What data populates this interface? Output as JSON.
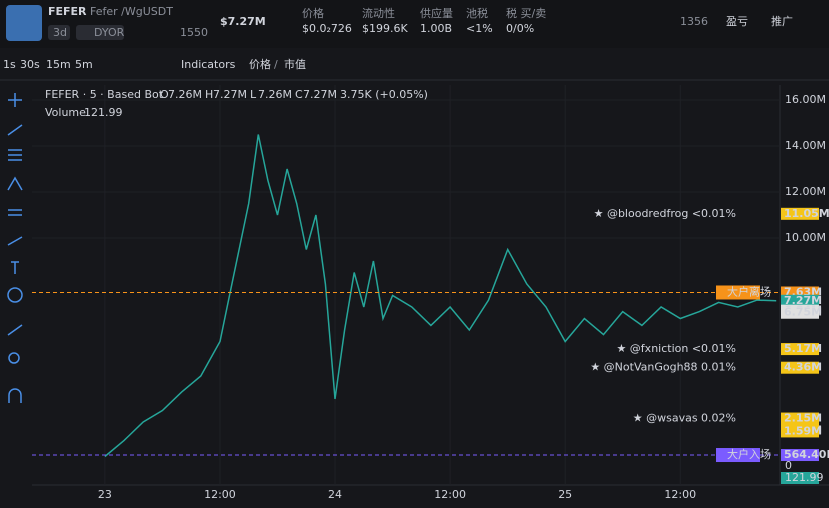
{
  "header": {
    "symbol": "FEFER",
    "pair": "Fefer /WgUSDT",
    "age": "3d",
    "dyor": "DYOR",
    "x_followers": "1550",
    "market_cap": "$7.27M",
    "stats": [
      {
        "label": "价格",
        "value": "$0.0₂726"
      },
      {
        "label": "流动性",
        "value": "$199.6K"
      },
      {
        "label": "供应量",
        "value": "1.00B"
      },
      {
        "label": "池税",
        "value": "<1%"
      },
      {
        "label": "税 买/卖",
        "value": "0/0%"
      }
    ],
    "views": "1356",
    "pnl": "盈亏",
    "promote": "推广"
  },
  "toolbar": {
    "intervals": [
      "1s",
      "30s",
      "15m",
      "5m"
    ],
    "indicators": "Indicators",
    "price": "价格",
    "mcap": "市值"
  },
  "legend": {
    "title": "FEFER · 5 · Based Bot",
    "ohlc": [
      {
        "k": "O",
        "v": "7.26M"
      },
      {
        "k": "H",
        "v": "7.27M"
      },
      {
        "k": "L",
        "v": "7.26M"
      },
      {
        "k": "C",
        "v": "7.27M"
      }
    ],
    "change": "3.75K (+0.05%)",
    "volume_label": "Volume",
    "volume_value": "121.99"
  },
  "chart_data": {
    "type": "line",
    "color": "#26a69a",
    "ylim": [
      0,
      16.65
    ],
    "yticks": [
      {
        "value": 16,
        "label": "16.00M"
      },
      {
        "value": 14,
        "label": "14.00M"
      },
      {
        "value": 12,
        "label": "12.00M"
      },
      {
        "value": 10,
        "label": "10.00M"
      }
    ],
    "xlim": [
      -7.6,
      70.4
    ],
    "xticks": [
      {
        "value": 0,
        "label": "23"
      },
      {
        "value": 12,
        "label": "12:00"
      },
      {
        "value": 24,
        "label": "24"
      },
      {
        "value": 36,
        "label": "12:00"
      },
      {
        "value": 48,
        "label": "25"
      },
      {
        "value": 60,
        "label": "12:00"
      }
    ],
    "x": [
      0,
      2,
      4,
      6,
      8,
      10,
      12,
      13,
      14,
      15,
      16,
      17,
      18,
      19,
      20,
      21,
      22,
      23,
      24,
      25,
      26,
      27,
      28,
      29,
      30,
      32,
      34,
      36,
      38,
      40,
      42,
      44,
      46,
      48,
      50,
      52,
      54,
      56,
      58,
      60,
      62,
      64,
      66,
      68,
      70
    ],
    "series": [
      {
        "name": "FEFER",
        "values": [
          0.5,
          1.2,
          2.0,
          2.5,
          3.3,
          4.0,
          5.5,
          7.5,
          9.5,
          11.5,
          14.5,
          12.5,
          11,
          13,
          11.5,
          9.5,
          11,
          8,
          3,
          6,
          8.5,
          7,
          9,
          6.5,
          7.5,
          7,
          6.2,
          7,
          6,
          7.3,
          9.5,
          8,
          7,
          5.5,
          6.5,
          5.8,
          6.8,
          6.2,
          7.0,
          6.5,
          6.8,
          7.2,
          7.0,
          7.3,
          7.27
        ]
      }
    ],
    "levels": [
      {
        "value": 11.05,
        "label": "11.05M",
        "color": "#f5c518",
        "note": "★ @bloodredfrog <0.01%"
      },
      {
        "value": 7.63,
        "label": "7.63M",
        "color": "#f7931a",
        "note": "大户离场"
      },
      {
        "value": 7.27,
        "label": "7.27M",
        "color": "#26a69a"
      },
      {
        "value": 6.84,
        "label": "6.84M",
        "color": "#e0e0e0"
      },
      {
        "value": 6.75,
        "label": "6.75M",
        "color": "#e0e0e0"
      },
      {
        "value": 5.17,
        "label": "5.17M",
        "color": "#f5c518",
        "note": "★ @fxniction <0.01%"
      },
      {
        "value": 4.36,
        "label": "4.36M",
        "color": "#f5c518",
        "note": "★ @NotVanGogh88 0.01%"
      },
      {
        "value": 2.15,
        "label": "2.15M",
        "color": "#f5c518",
        "note": "★ @wsavas 0.02%"
      },
      {
        "value": 1.64,
        "label": "1.64M",
        "color": "#f5c518"
      },
      {
        "value": 1.59,
        "label": "1.59M",
        "color": "#f5c518"
      },
      {
        "value": 0.5644,
        "label": "564.40K",
        "color": "#7b5cff",
        "note": "大户入场"
      }
    ],
    "volume_axis": [
      "0",
      "121.99"
    ]
  }
}
